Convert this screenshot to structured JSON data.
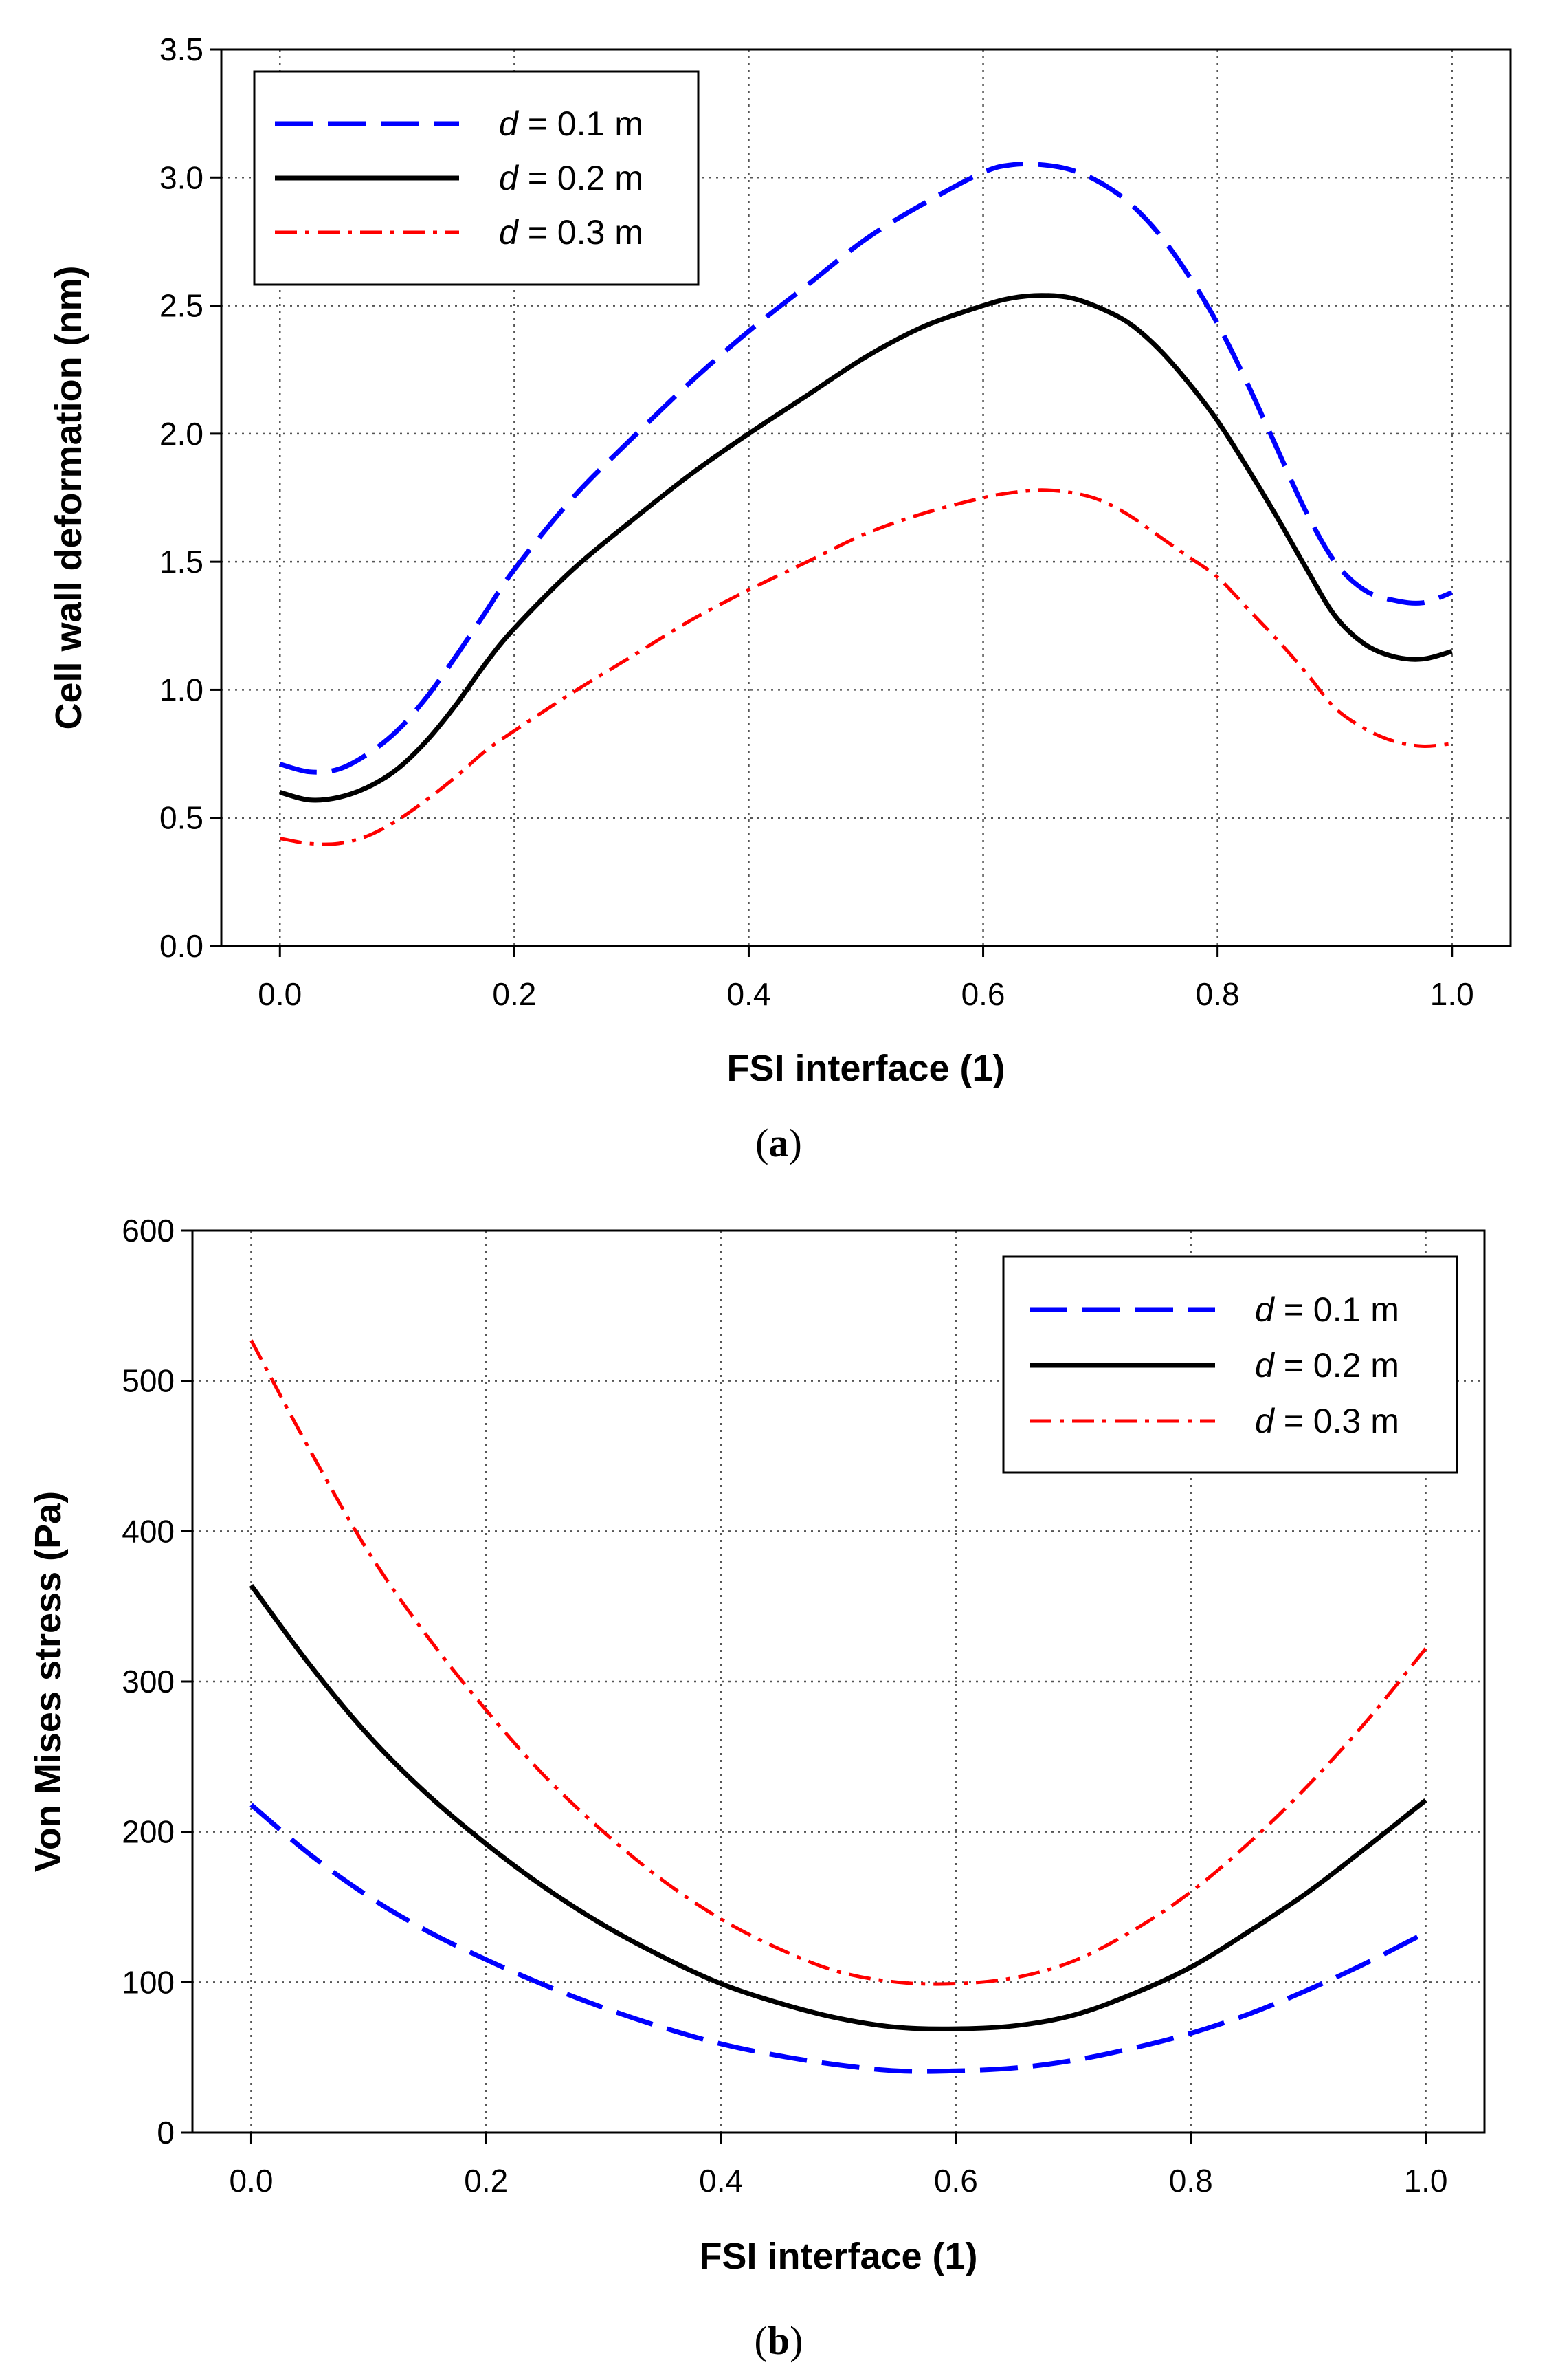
{
  "colors": {
    "series_1": "#0000ff",
    "series_2": "#000000",
    "series_3": "#ff0000",
    "grid": "#555555"
  },
  "chart_data": [
    {
      "type": "line",
      "caption_open": "(",
      "caption_letter": "a",
      "caption_close": ")",
      "title": "",
      "xlabel": "FSI interface (1)",
      "ylabel": "Cell wall deformation (nm)",
      "xlim": [
        -0.05,
        1.05
      ],
      "ylim": [
        0,
        3.5
      ],
      "xticks": [
        0.0,
        0.2,
        0.4,
        0.6,
        0.8,
        1.0
      ],
      "xtick_labels": [
        "0.0",
        "0.2",
        "0.4",
        "0.6",
        "0.8",
        "1.0"
      ],
      "yticks": [
        0.0,
        0.5,
        1.0,
        1.5,
        2.0,
        2.5,
        3.0,
        3.5
      ],
      "ytick_labels": [
        "0.0",
        "0.5",
        "1.0",
        "1.5",
        "2.0",
        "2.5",
        "3.0",
        "3.5"
      ],
      "grid": true,
      "legend_position": "top-left",
      "series": [
        {
          "name": "d = 0.1 m",
          "legend_var": "d",
          "legend_rest": " = 0.1 m",
          "style": "dashed",
          "x": [
            0.0,
            0.025,
            0.05,
            0.075,
            0.1,
            0.125,
            0.15,
            0.175,
            0.2,
            0.25,
            0.3,
            0.35,
            0.4,
            0.45,
            0.5,
            0.55,
            0.6,
            0.625,
            0.65,
            0.675,
            0.7,
            0.725,
            0.75,
            0.775,
            0.8,
            0.825,
            0.85,
            0.875,
            0.9,
            0.925,
            0.95,
            0.975,
            1.0
          ],
          "y": [
            0.71,
            0.68,
            0.69,
            0.75,
            0.84,
            0.97,
            1.13,
            1.3,
            1.47,
            1.75,
            1.98,
            2.2,
            2.4,
            2.58,
            2.76,
            2.9,
            3.02,
            3.05,
            3.05,
            3.03,
            2.98,
            2.9,
            2.78,
            2.62,
            2.43,
            2.2,
            1.95,
            1.7,
            1.5,
            1.39,
            1.35,
            1.34,
            1.38
          ]
        },
        {
          "name": "d = 0.2 m",
          "legend_var": "d",
          "legend_rest": " = 0.2 m",
          "style": "solid",
          "x": [
            0.0,
            0.025,
            0.05,
            0.075,
            0.1,
            0.125,
            0.15,
            0.175,
            0.2,
            0.25,
            0.3,
            0.35,
            0.4,
            0.45,
            0.5,
            0.55,
            0.6,
            0.625,
            0.65,
            0.675,
            0.7,
            0.725,
            0.75,
            0.775,
            0.8,
            0.825,
            0.85,
            0.875,
            0.9,
            0.925,
            0.95,
            0.975,
            1.0
          ],
          "y": [
            0.6,
            0.57,
            0.58,
            0.62,
            0.69,
            0.8,
            0.94,
            1.1,
            1.24,
            1.47,
            1.66,
            1.84,
            2.0,
            2.15,
            2.3,
            2.42,
            2.5,
            2.53,
            2.54,
            2.53,
            2.49,
            2.43,
            2.33,
            2.2,
            2.05,
            1.87,
            1.68,
            1.48,
            1.29,
            1.18,
            1.13,
            1.12,
            1.15
          ]
        },
        {
          "name": "d = 0.3 m",
          "legend_var": "d",
          "legend_rest": " = 0.3 m",
          "style": "dash-dot",
          "x": [
            0.0,
            0.025,
            0.05,
            0.075,
            0.1,
            0.125,
            0.15,
            0.175,
            0.2,
            0.25,
            0.3,
            0.35,
            0.4,
            0.45,
            0.5,
            0.55,
            0.6,
            0.625,
            0.65,
            0.675,
            0.7,
            0.725,
            0.75,
            0.775,
            0.8,
            0.825,
            0.85,
            0.875,
            0.9,
            0.925,
            0.95,
            0.975,
            1.0
          ],
          "y": [
            0.42,
            0.4,
            0.4,
            0.43,
            0.49,
            0.57,
            0.66,
            0.76,
            0.84,
            0.99,
            1.13,
            1.27,
            1.39,
            1.5,
            1.61,
            1.69,
            1.75,
            1.77,
            1.78,
            1.77,
            1.74,
            1.68,
            1.6,
            1.52,
            1.44,
            1.32,
            1.2,
            1.07,
            0.93,
            0.85,
            0.8,
            0.78,
            0.79
          ]
        }
      ]
    },
    {
      "type": "line",
      "caption_open": "(",
      "caption_letter": "b",
      "caption_close": ")",
      "title": "",
      "xlabel": "FSI interface (1)",
      "ylabel": "Von Mises stress (Pa)",
      "xlim": [
        -0.05,
        1.05
      ],
      "ylim": [
        0,
        600
      ],
      "xticks": [
        0.0,
        0.2,
        0.4,
        0.6,
        0.8,
        1.0
      ],
      "xtick_labels": [
        "0.0",
        "0.2",
        "0.4",
        "0.6",
        "0.8",
        "1.0"
      ],
      "yticks": [
        0,
        100,
        200,
        300,
        400,
        500,
        600
      ],
      "ytick_labels": [
        "0",
        "100",
        "200",
        "300",
        "400",
        "500",
        "600"
      ],
      "grid": true,
      "legend_position": "top-right",
      "series": [
        {
          "name": "d = 0.1 m",
          "legend_var": "d",
          "legend_rest": " = 0.1 m",
          "style": "dashed",
          "x": [
            0.0,
            0.05,
            0.1,
            0.15,
            0.2,
            0.25,
            0.3,
            0.35,
            0.4,
            0.45,
            0.5,
            0.55,
            0.6,
            0.65,
            0.7,
            0.75,
            0.8,
            0.85,
            0.9,
            0.95,
            1.0
          ],
          "y": [
            218,
            185,
            157,
            134,
            115,
            98,
            83,
            70,
            59,
            51,
            45,
            41,
            41,
            43,
            48,
            56,
            66,
            79,
            95,
            113,
            133
          ]
        },
        {
          "name": "d = 0.2 m",
          "legend_var": "d",
          "legend_rest": " = 0.2 m",
          "style": "solid",
          "x": [
            0.0,
            0.05,
            0.1,
            0.15,
            0.2,
            0.25,
            0.3,
            0.35,
            0.4,
            0.45,
            0.5,
            0.55,
            0.6,
            0.65,
            0.7,
            0.75,
            0.8,
            0.85,
            0.9,
            0.95,
            1.0
          ],
          "y": [
            364,
            311,
            264,
            225,
            192,
            163,
            138,
            117,
            99,
            86,
            76,
            70,
            69,
            71,
            78,
            92,
            110,
            134,
            160,
            190,
            221
          ]
        },
        {
          "name": "d = 0.3 m",
          "legend_var": "d",
          "legend_rest": " = 0.3 m",
          "style": "dash-dot",
          "x": [
            0.0,
            0.05,
            0.1,
            0.15,
            0.2,
            0.25,
            0.3,
            0.35,
            0.4,
            0.45,
            0.5,
            0.55,
            0.6,
            0.65,
            0.7,
            0.75,
            0.8,
            0.85,
            0.9,
            0.95,
            1.0
          ],
          "y": [
            527,
            454,
            386,
            330,
            281,
            237,
            200,
            168,
            142,
            122,
            107,
            100,
            99,
            103,
            114,
            134,
            160,
            193,
            231,
            274,
            322
          ]
        }
      ]
    }
  ]
}
